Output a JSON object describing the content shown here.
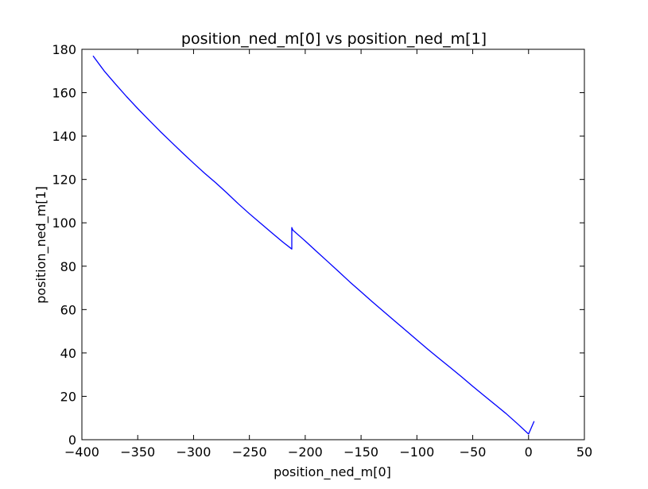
{
  "chart_data": {
    "type": "line",
    "title": "position_ned_m[0] vs position_ned_m[1]",
    "xlabel": "position_ned_m[0]",
    "ylabel": "position_ned_m[1]",
    "xlim": [
      -400,
      50
    ],
    "ylim": [
      0,
      180
    ],
    "xticks": [
      -400,
      -350,
      -300,
      -250,
      -200,
      -150,
      -100,
      -50,
      0,
      50
    ],
    "yticks": [
      0,
      20,
      40,
      60,
      80,
      100,
      120,
      140,
      160,
      180
    ],
    "xtick_labels": [
      "−400",
      "−350",
      "−300",
      "−250",
      "−200",
      "−150",
      "−100",
      "−50",
      "0",
      "50"
    ],
    "ytick_labels": [
      "0",
      "20",
      "40",
      "60",
      "80",
      "100",
      "120",
      "140",
      "160",
      "180"
    ],
    "grid": false,
    "legend": "none",
    "series": [
      {
        "color": "#0000ff",
        "x": [
          -390,
          -380,
          -370,
          -360,
          -350,
          -340,
          -330,
          -320,
          -310,
          -300,
          -290,
          -280,
          -270,
          -260,
          -250,
          -240,
          -230,
          -220,
          -212,
          -212,
          -211,
          -200,
          -190,
          -180,
          -170,
          -160,
          -150,
          -140,
          -130,
          -120,
          -110,
          -100,
          -90,
          -80,
          -70,
          -60,
          -50,
          -40,
          -30,
          -20,
          -10,
          0,
          5
        ],
        "y": [
          177,
          170,
          164,
          158.2,
          152.7,
          147.4,
          142.2,
          137.2,
          132.3,
          127.5,
          122.8,
          118.4,
          113.7,
          108.8,
          104.2,
          99.8,
          95.4,
          91.1,
          87.9,
          97.8,
          96.6,
          91.6,
          86.9,
          82.2,
          77.5,
          72.7,
          68.2,
          63.6,
          59.2,
          54.8,
          50.4,
          46.0,
          41.6,
          37.4,
          33.2,
          29.0,
          24.6,
          20.4,
          16.2,
          12.0,
          7.4,
          2.6,
          8.5
        ]
      }
    ]
  }
}
